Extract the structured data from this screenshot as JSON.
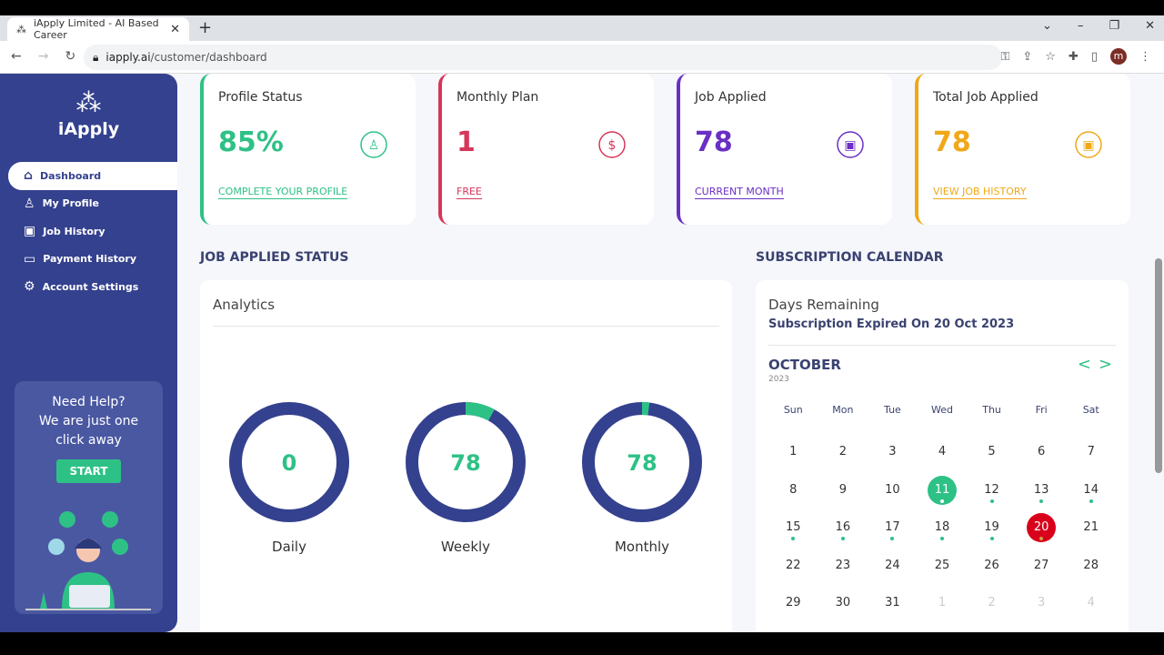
{
  "browser": {
    "tab_title": "iApply Limited - AI Based Career",
    "url_domain": "iapply.ai",
    "url_path": "/customer/dashboard",
    "profile_initial": "m"
  },
  "sidebar": {
    "brand": "iApply",
    "items": [
      {
        "label": "Dashboard",
        "icon": "home-icon",
        "active": true
      },
      {
        "label": "My Profile",
        "icon": "user-icon"
      },
      {
        "label": "Job History",
        "icon": "briefcase-icon"
      },
      {
        "label": "Payment History",
        "icon": "card-icon"
      },
      {
        "label": "Account Settings",
        "icon": "gear-icon"
      }
    ],
    "help": {
      "line1": "Need Help?",
      "line2": "We are just one",
      "line3": "click away",
      "button": "START"
    }
  },
  "cards": [
    {
      "title": "Profile Status",
      "value": "85%",
      "link": "COMPLETE YOUR PROFILE",
      "color": "#2ec186",
      "icon": "user-circle-icon"
    },
    {
      "title": "Monthly Plan",
      "value": "1",
      "link": "FREE",
      "color": "#d6365a",
      "icon": "dollar-circle-icon"
    },
    {
      "title": "Job Applied",
      "value": "78",
      "link": "CURRENT MONTH",
      "color": "#6a2fc4",
      "icon": "briefcase-icon"
    },
    {
      "title": "Total Job Applied",
      "value": "78",
      "link": "VIEW JOB HISTORY",
      "color": "#f0a818",
      "icon": "briefcase-check-icon"
    }
  ],
  "analytics": {
    "section": "JOB APPLIED STATUS",
    "title": "Analytics",
    "donuts": [
      {
        "value": "0",
        "label": "Daily",
        "highlight_fraction": 0
      },
      {
        "value": "78",
        "label": "Weekly",
        "highlight_fraction": 0.08
      },
      {
        "value": "78",
        "label": "Monthly",
        "highlight_fraction": 0.02
      }
    ]
  },
  "calendar": {
    "section": "SUBSCRIPTION CALENDAR",
    "title": "Days Remaining",
    "expired": "Subscription Expired On 20 Oct 2023",
    "month": "OCTOBER",
    "year": "2023",
    "weekdays": [
      "Sun",
      "Mon",
      "Tue",
      "Wed",
      "Thu",
      "Fri",
      "Sat"
    ],
    "days": [
      "1",
      "2",
      "3",
      "4",
      "5",
      "6",
      "7",
      "8",
      "9",
      "10",
      "11",
      "12",
      "13",
      "14",
      "15",
      "16",
      "17",
      "18",
      "19",
      "20",
      "21",
      "22",
      "23",
      "24",
      "25",
      "26",
      "27",
      "28",
      "29",
      "30",
      "31",
      "1",
      "2",
      "3",
      "4"
    ],
    "today": "11",
    "expiry": "20",
    "dotted_range": [
      11,
      20
    ],
    "next_month_count": 4
  }
}
